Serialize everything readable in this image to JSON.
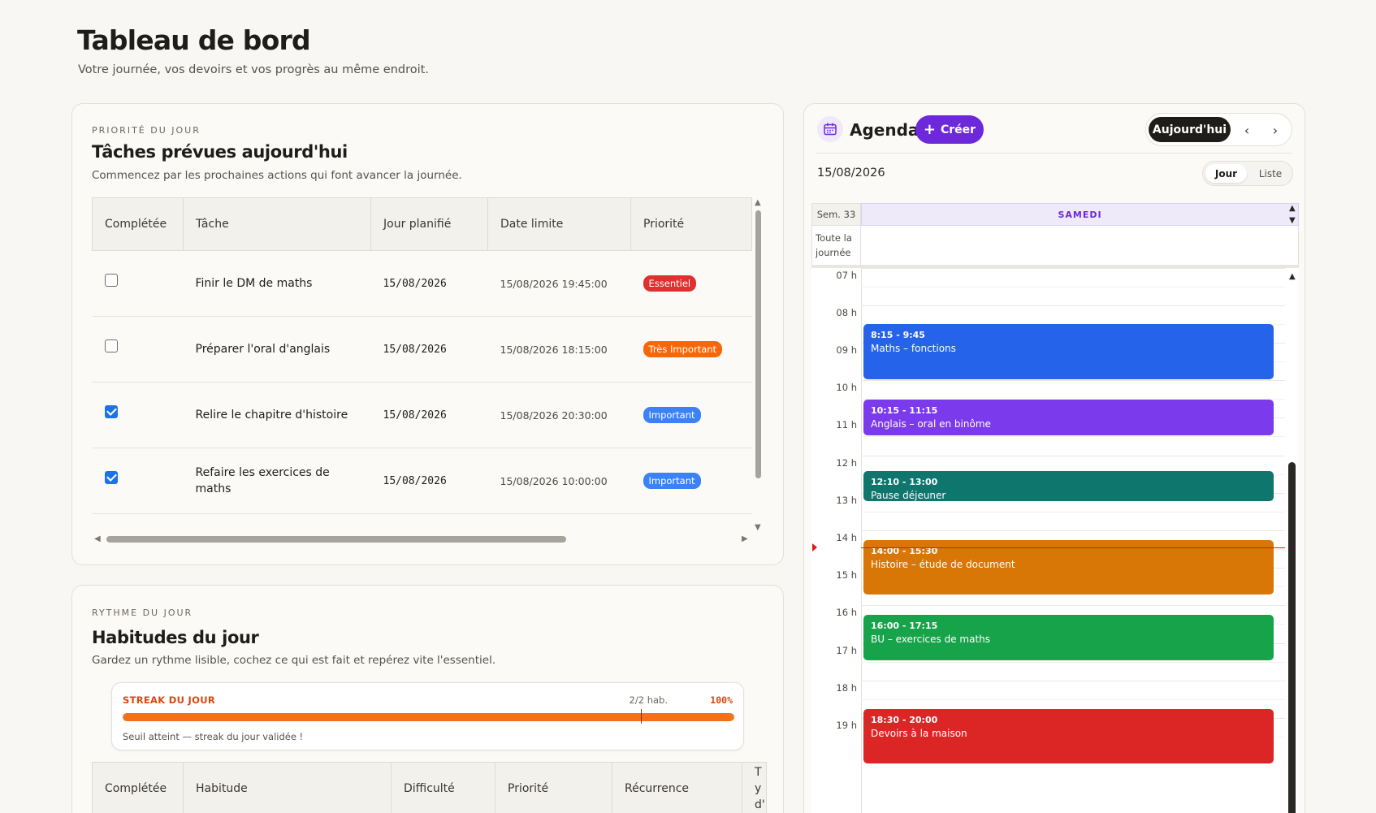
{
  "page": {
    "title": "Tableau de bord",
    "subtitle": "Votre journée, vos devoirs et vos progrès au même endroit."
  },
  "tasks": {
    "eyebrow": "PRIORITÉ DU JOUR",
    "title": "Tâches prévues aujourd'hui",
    "subtitle": "Commencez par les prochaines actions qui font avancer la journée.",
    "columns": [
      "Complétée",
      "Tâche",
      "Jour planifié",
      "Date limite",
      "Priorité"
    ],
    "rows": [
      {
        "done": false,
        "name": "Finir le DM de maths",
        "planned": "15/08/2026",
        "deadline": "15/08/2026 19:45:00",
        "priority": "Essentiel",
        "priority_color": "#e03131"
      },
      {
        "done": false,
        "name": "Préparer l'oral d'anglais",
        "planned": "15/08/2026",
        "deadline": "15/08/2026 18:15:00",
        "priority": "Très Important",
        "priority_color": "#f76707"
      },
      {
        "done": true,
        "name": "Relire le chapitre d'histoire",
        "planned": "15/08/2026",
        "deadline": "15/08/2026 20:30:00",
        "priority": "Important",
        "priority_color": "#3b82f6"
      },
      {
        "done": true,
        "name": "Refaire les exercices de maths",
        "planned": "15/08/2026",
        "deadline": "15/08/2026 10:00:00",
        "priority": "Important",
        "priority_color": "#3b82f6"
      }
    ]
  },
  "habits": {
    "eyebrow": "RYTHME DU JOUR",
    "title": "Habitudes du jour",
    "subtitle": "Gardez un rythme lisible, cochez ce qui est fait et repérez vite l'essentiel.",
    "streak": {
      "label": "STREAK DU JOUR",
      "count": "2/2 hab.",
      "percent_text": "100%",
      "progress": 1.0,
      "note": "Seuil atteint — streak du jour validée !"
    },
    "columns": [
      "Complétée",
      "Habitude",
      "Difficulté",
      "Priorité",
      "Récurrence",
      "Ty d'"
    ]
  },
  "agenda": {
    "title": "Agenda",
    "create_label": "Créer",
    "today_label": "Aujourd'hui",
    "date": "15/08/2026",
    "view_day": "Jour",
    "view_list": "Liste",
    "week_label": "Sem. 33",
    "day_label": "SAMEDI",
    "allday_label": "Toute la journée",
    "hours": [
      "07 h",
      "08 h",
      "09 h",
      "10 h",
      "11 h",
      "12 h",
      "13 h",
      "14 h",
      "15 h",
      "16 h",
      "17 h",
      "18 h",
      "19 h"
    ],
    "events": [
      {
        "time": "8:15 - 9:45",
        "title": "Maths – fonctions",
        "start": 8.25,
        "end": 9.75,
        "color": "#2563eb"
      },
      {
        "time": "10:15 - 11:15",
        "title": "Anglais – oral en binôme",
        "start": 10.25,
        "end": 11.25,
        "color": "#7c3aed"
      },
      {
        "time": "12:10 - 13:00",
        "title": "Pause déjeuner",
        "start": 12.1667,
        "end": 13.0,
        "color": "#0f766e"
      },
      {
        "time": "14:00 - 15:30",
        "title": "Histoire – étude de document",
        "start": 14.0,
        "end": 15.5,
        "color": "#d97706"
      },
      {
        "time": "16:00 - 17:15",
        "title": "BU – exercices de maths",
        "start": 16.0,
        "end": 17.25,
        "color": "#16a34a"
      },
      {
        "time": "18:30 - 20:00",
        "title": "Devoirs à la maison",
        "start": 18.5,
        "end": 20.0,
        "color": "#dc2626"
      }
    ],
    "now_hour": 14.2
  }
}
